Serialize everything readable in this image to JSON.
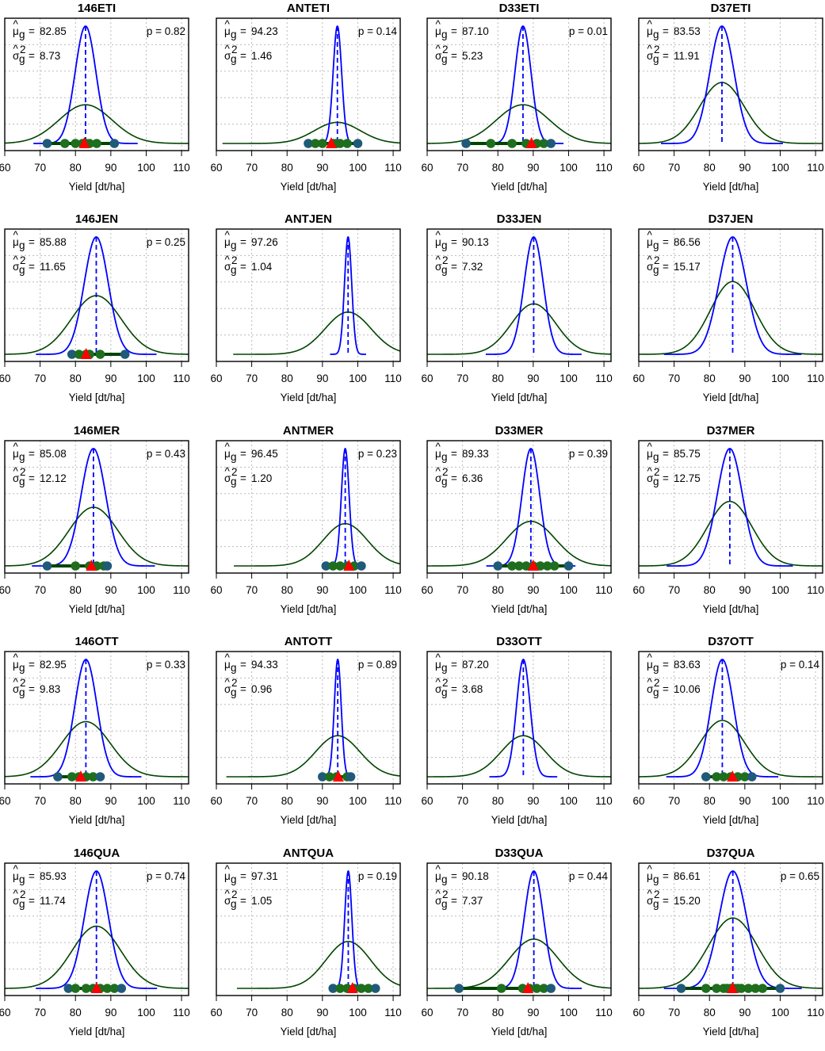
{
  "axis": {
    "xlabel": "Yield [dt/ha]",
    "xlim": [
      60,
      112
    ],
    "ticks": [
      60,
      70,
      80,
      90,
      100,
      110
    ],
    "mu_symbol": "μ",
    "sigma_symbol": "σ",
    "hat": "^",
    "sub_g": "g",
    "sup_2": "2",
    "equals": "="
  },
  "colors": {
    "blue": "#0000ff",
    "green": "#004400",
    "dot": "#1e6e1e",
    "dot_blue": "#1f5a78",
    "triangle": "#ff0000",
    "grid": "#bbbbbb"
  },
  "chart_data": [
    {
      "type": "line",
      "title": "146ETI",
      "mu": "82.85",
      "sigma2": "8.73",
      "p": "0.82",
      "blue_mean": 82.85,
      "blue_sd": 2.95,
      "green_mean": 82.85,
      "green_sd": 7.5,
      "ratio": 0.33,
      "obs": [
        72,
        77,
        80,
        82,
        83,
        84,
        86,
        91
      ],
      "tri": 82.5
    },
    {
      "type": "line",
      "title": "ANTETI",
      "mu": "94.23",
      "sigma2": "1.46",
      "p": "0.14",
      "blue_mean": 94.23,
      "blue_sd": 1.21,
      "green_mean": 94.23,
      "green_sd": 6.5,
      "ratio": 0.18,
      "obs": [
        86,
        88,
        90,
        93,
        94,
        95,
        97,
        100
      ],
      "tri": 92.5
    },
    {
      "type": "line",
      "title": "D33ETI",
      "mu": "87.10",
      "sigma2": "5.23",
      "p": "0.01",
      "blue_mean": 87.1,
      "blue_sd": 2.29,
      "green_mean": 87.1,
      "green_sd": 7.5,
      "ratio": 0.33,
      "obs": [
        71,
        78,
        84,
        88,
        91,
        93,
        95
      ],
      "tri": 89.5
    },
    {
      "type": "line",
      "title": "D37ETI",
      "mu": "83.53",
      "sigma2": "11.91",
      "p": "",
      "blue_mean": 83.53,
      "blue_sd": 3.45,
      "green_mean": 83.53,
      "green_sd": 6.3,
      "ratio": 0.52,
      "obs": [],
      "tri": null
    },
    {
      "type": "line",
      "title": "146JEN",
      "mu": "85.88",
      "sigma2": "11.65",
      "p": "0.25",
      "blue_mean": 85.88,
      "blue_sd": 3.41,
      "green_mean": 85.88,
      "green_sd": 7.0,
      "ratio": 0.5,
      "obs": [
        79,
        81,
        83,
        84,
        87,
        94
      ],
      "tri": 83
    },
    {
      "type": "line",
      "title": "ANTJEN",
      "mu": "97.26",
      "sigma2": "1.04",
      "p": "",
      "blue_mean": 97.26,
      "blue_sd": 1.02,
      "green_mean": 97.26,
      "green_sd": 6.5,
      "ratio": 0.36,
      "obs": [],
      "tri": null
    },
    {
      "type": "line",
      "title": "D33JEN",
      "mu": "90.13",
      "sigma2": "7.32",
      "p": "",
      "blue_mean": 90.13,
      "blue_sd": 2.71,
      "green_mean": 90.13,
      "green_sd": 6.3,
      "ratio": 0.43,
      "obs": [],
      "tri": null
    },
    {
      "type": "line",
      "title": "D37JEN",
      "mu": "86.56",
      "sigma2": "15.17",
      "p": "",
      "blue_mean": 86.56,
      "blue_sd": 3.89,
      "green_mean": 86.56,
      "green_sd": 6.3,
      "ratio": 0.62,
      "obs": [],
      "tri": null
    },
    {
      "type": "line",
      "title": "146MER",
      "mu": "85.08",
      "sigma2": "12.12",
      "p": "0.43",
      "blue_mean": 85.08,
      "blue_sd": 3.48,
      "green_mean": 85.08,
      "green_sd": 6.9,
      "ratio": 0.5,
      "obs": [
        72,
        80,
        84,
        86,
        88,
        89
      ],
      "tri": 84.5
    },
    {
      "type": "line",
      "title": "ANTMER",
      "mu": "96.45",
      "sigma2": "1.20",
      "p": "0.23",
      "blue_mean": 96.45,
      "blue_sd": 1.1,
      "green_mean": 96.45,
      "green_sd": 6.3,
      "ratio": 0.36,
      "obs": [
        91,
        93,
        95,
        97,
        99,
        101
      ],
      "tri": 97.5
    },
    {
      "type": "line",
      "title": "D33MER",
      "mu": "89.33",
      "sigma2": "6.36",
      "p": "0.39",
      "blue_mean": 89.33,
      "blue_sd": 2.52,
      "green_mean": 89.33,
      "green_sd": 6.9,
      "ratio": 0.38,
      "obs": [
        80,
        84,
        86,
        88,
        90,
        92,
        94,
        96,
        100
      ],
      "tri": 90
    },
    {
      "type": "line",
      "title": "D37MER",
      "mu": "85.75",
      "sigma2": "12.75",
      "p": "",
      "blue_mean": 85.75,
      "blue_sd": 3.57,
      "green_mean": 85.75,
      "green_sd": 6.3,
      "ratio": 0.55,
      "obs": [],
      "tri": null
    },
    {
      "type": "line",
      "title": "146OTT",
      "mu": "82.95",
      "sigma2": "9.83",
      "p": "0.33",
      "blue_mean": 82.95,
      "blue_sd": 3.14,
      "green_mean": 82.95,
      "green_sd": 6.9,
      "ratio": 0.47,
      "obs": [
        75,
        79,
        81,
        83,
        85,
        87
      ],
      "tri": 81.5
    },
    {
      "type": "line",
      "title": "ANTOTT",
      "mu": "94.33",
      "sigma2": "0.96",
      "p": "0.89",
      "blue_mean": 94.33,
      "blue_sd": 0.98,
      "green_mean": 94.33,
      "green_sd": 6.3,
      "ratio": 0.35,
      "obs": [
        90,
        92,
        94,
        97,
        98
      ],
      "tri": 94.5
    },
    {
      "type": "line",
      "title": "D33OTT",
      "mu": "87.20",
      "sigma2": "3.68",
      "p": "",
      "blue_mean": 87.2,
      "blue_sd": 1.92,
      "green_mean": 87.2,
      "green_sd": 6.3,
      "ratio": 0.35,
      "obs": [],
      "tri": null
    },
    {
      "type": "line",
      "title": "D37OTT",
      "mu": "83.63",
      "sigma2": "10.06",
      "p": "0.14",
      "blue_mean": 83.63,
      "blue_sd": 3.17,
      "green_mean": 83.63,
      "green_sd": 6.3,
      "ratio": 0.48,
      "obs": [
        79,
        82,
        84,
        86,
        88,
        90,
        92
      ],
      "tri": 86.5
    },
    {
      "type": "line",
      "title": "146QUA",
      "mu": "85.93",
      "sigma2": "11.74",
      "p": "0.74",
      "blue_mean": 85.93,
      "blue_sd": 3.43,
      "green_mean": 85.93,
      "green_sd": 6.9,
      "ratio": 0.53,
      "obs": [
        78,
        80,
        83,
        85,
        87,
        89,
        91,
        93
      ],
      "tri": 86
    },
    {
      "type": "line",
      "title": "ANTQUA",
      "mu": "97.31",
      "sigma2": "1.05",
      "p": "0.19",
      "blue_mean": 97.31,
      "blue_sd": 1.02,
      "green_mean": 97.31,
      "green_sd": 6.3,
      "ratio": 0.4,
      "obs": [
        93,
        95,
        97,
        99,
        101,
        103,
        105
      ],
      "tri": 98.5
    },
    {
      "type": "line",
      "title": "D33QUA",
      "mu": "90.18",
      "sigma2": "7.37",
      "p": "0.44",
      "blue_mean": 90.18,
      "blue_sd": 2.71,
      "green_mean": 90.18,
      "green_sd": 6.9,
      "ratio": 0.42,
      "obs": [
        69,
        81,
        87,
        89,
        91,
        93,
        95
      ],
      "tri": 88.5
    },
    {
      "type": "line",
      "title": "D37QUA",
      "mu": "86.61",
      "sigma2": "15.20",
      "p": "0.65",
      "blue_mean": 86.61,
      "blue_sd": 3.9,
      "green_mean": 86.61,
      "green_sd": 6.9,
      "ratio": 0.6,
      "obs": [
        72,
        79,
        82,
        84,
        85,
        86,
        87,
        88,
        89,
        91,
        93,
        95,
        100
      ],
      "tri": 86.5
    }
  ]
}
